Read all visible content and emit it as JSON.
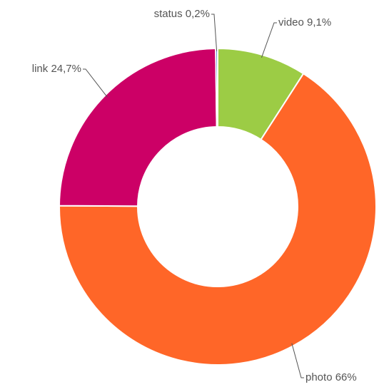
{
  "chart_data": {
    "type": "donut",
    "categories": [
      "video",
      "photo",
      "link",
      "status"
    ],
    "values": [
      9.1,
      66,
      24.7,
      0.2
    ],
    "value_labels": [
      "9,1%",
      "66%",
      "24,7%",
      "0,2%"
    ],
    "colors": [
      "#9ccc45",
      "#ff6628",
      "#cc0066",
      "#3366cc"
    ]
  }
}
